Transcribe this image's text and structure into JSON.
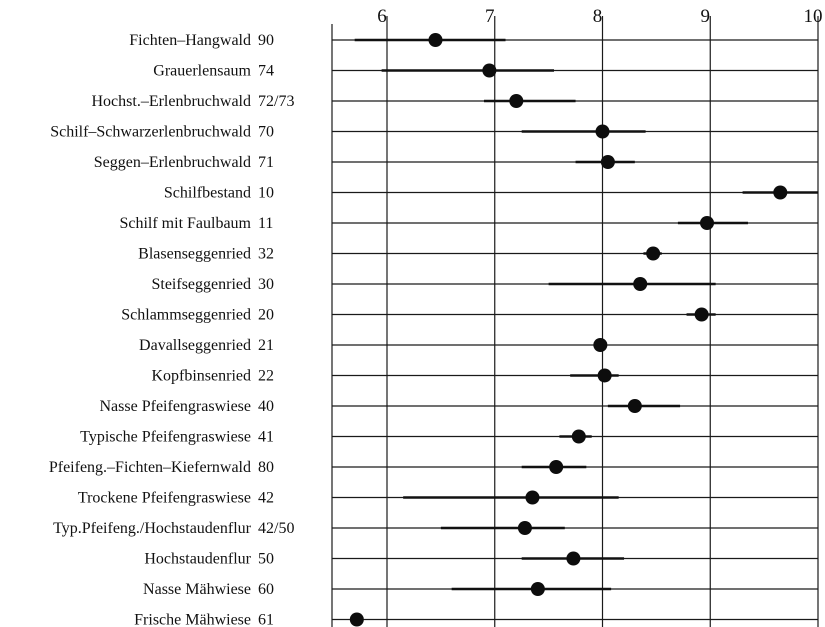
{
  "chart_data": {
    "type": "scatter",
    "orientation": "horizontal",
    "xlim": [
      5.75,
      10
    ],
    "x_ticks": [
      "6",
      "7",
      "8",
      "9",
      "10"
    ],
    "grid": true,
    "colors": {
      "marker": "#0d0d0d",
      "bar": "#111111",
      "grid": "#1a1a1a"
    },
    "series": [
      {
        "category": "Fichten–Hangwald",
        "code": "90",
        "mean": 6.45,
        "low": 5.7,
        "high": 7.1
      },
      {
        "category": "Grauerlensaum",
        "code": "74",
        "mean": 6.95,
        "low": 5.95,
        "high": 7.55
      },
      {
        "category": "Hochst.–Erlenbruchwald",
        "code": "72/73",
        "mean": 7.2,
        "low": 6.9,
        "high": 7.75
      },
      {
        "category": "Schilf–Schwarzerlenbruchwald",
        "code": "70",
        "mean": 8.0,
        "low": 7.25,
        "high": 8.4
      },
      {
        "category": "Seggen–Erlenbruchwald",
        "code": "71",
        "mean": 8.05,
        "low": 7.75,
        "high": 8.3
      },
      {
        "category": "Schilfbestand",
        "code": "10",
        "mean": 9.65,
        "low": 9.3,
        "high": 10.0
      },
      {
        "category": "Schilf mit Faulbaum",
        "code": "11",
        "mean": 8.97,
        "low": 8.7,
        "high": 9.35
      },
      {
        "category": "Blasenseggenried",
        "code": "32",
        "mean": 8.47,
        "low": 8.38,
        "high": 8.55
      },
      {
        "category": "Steifseggenried",
        "code": "30",
        "mean": 8.35,
        "low": 7.5,
        "high": 9.05
      },
      {
        "category": "Schlammseggenried",
        "code": "20",
        "mean": 8.92,
        "low": 8.78,
        "high": 9.05
      },
      {
        "category": "Davallseggenried",
        "code": "21",
        "mean": 7.98,
        "low": 7.95,
        "high": 8.02
      },
      {
        "category": "Kopfbinsenried",
        "code": "22",
        "mean": 8.02,
        "low": 7.7,
        "high": 8.15
      },
      {
        "category": "Nasse Pfeifengraswiese",
        "code": "40",
        "mean": 8.3,
        "low": 8.05,
        "high": 8.72
      },
      {
        "category": "Typische Pfeifengraswiese",
        "code": "41",
        "mean": 7.78,
        "low": 7.6,
        "high": 7.9
      },
      {
        "category": "Pfeifeng.–Fichten–Kiefernwald",
        "code": "80",
        "mean": 7.57,
        "low": 7.25,
        "high": 7.85
      },
      {
        "category": "Trockene Pfeifengraswiese",
        "code": "42",
        "mean": 7.35,
        "low": 6.15,
        "high": 8.15
      },
      {
        "category": "Typ.Pfeifeng./Hochstaudenflur",
        "code": "42/50",
        "mean": 7.28,
        "low": 6.5,
        "high": 7.65
      },
      {
        "category": "Hochstaudenflur",
        "code": "50",
        "mean": 7.73,
        "low": 7.25,
        "high": 8.2
      },
      {
        "category": "Nasse Mähwiese",
        "code": "60",
        "mean": 7.4,
        "low": 6.6,
        "high": 8.08
      },
      {
        "category": "Frische Mähwiese",
        "code": "61",
        "mean": 5.72,
        "low": 5.72,
        "high": 5.72
      }
    ]
  }
}
